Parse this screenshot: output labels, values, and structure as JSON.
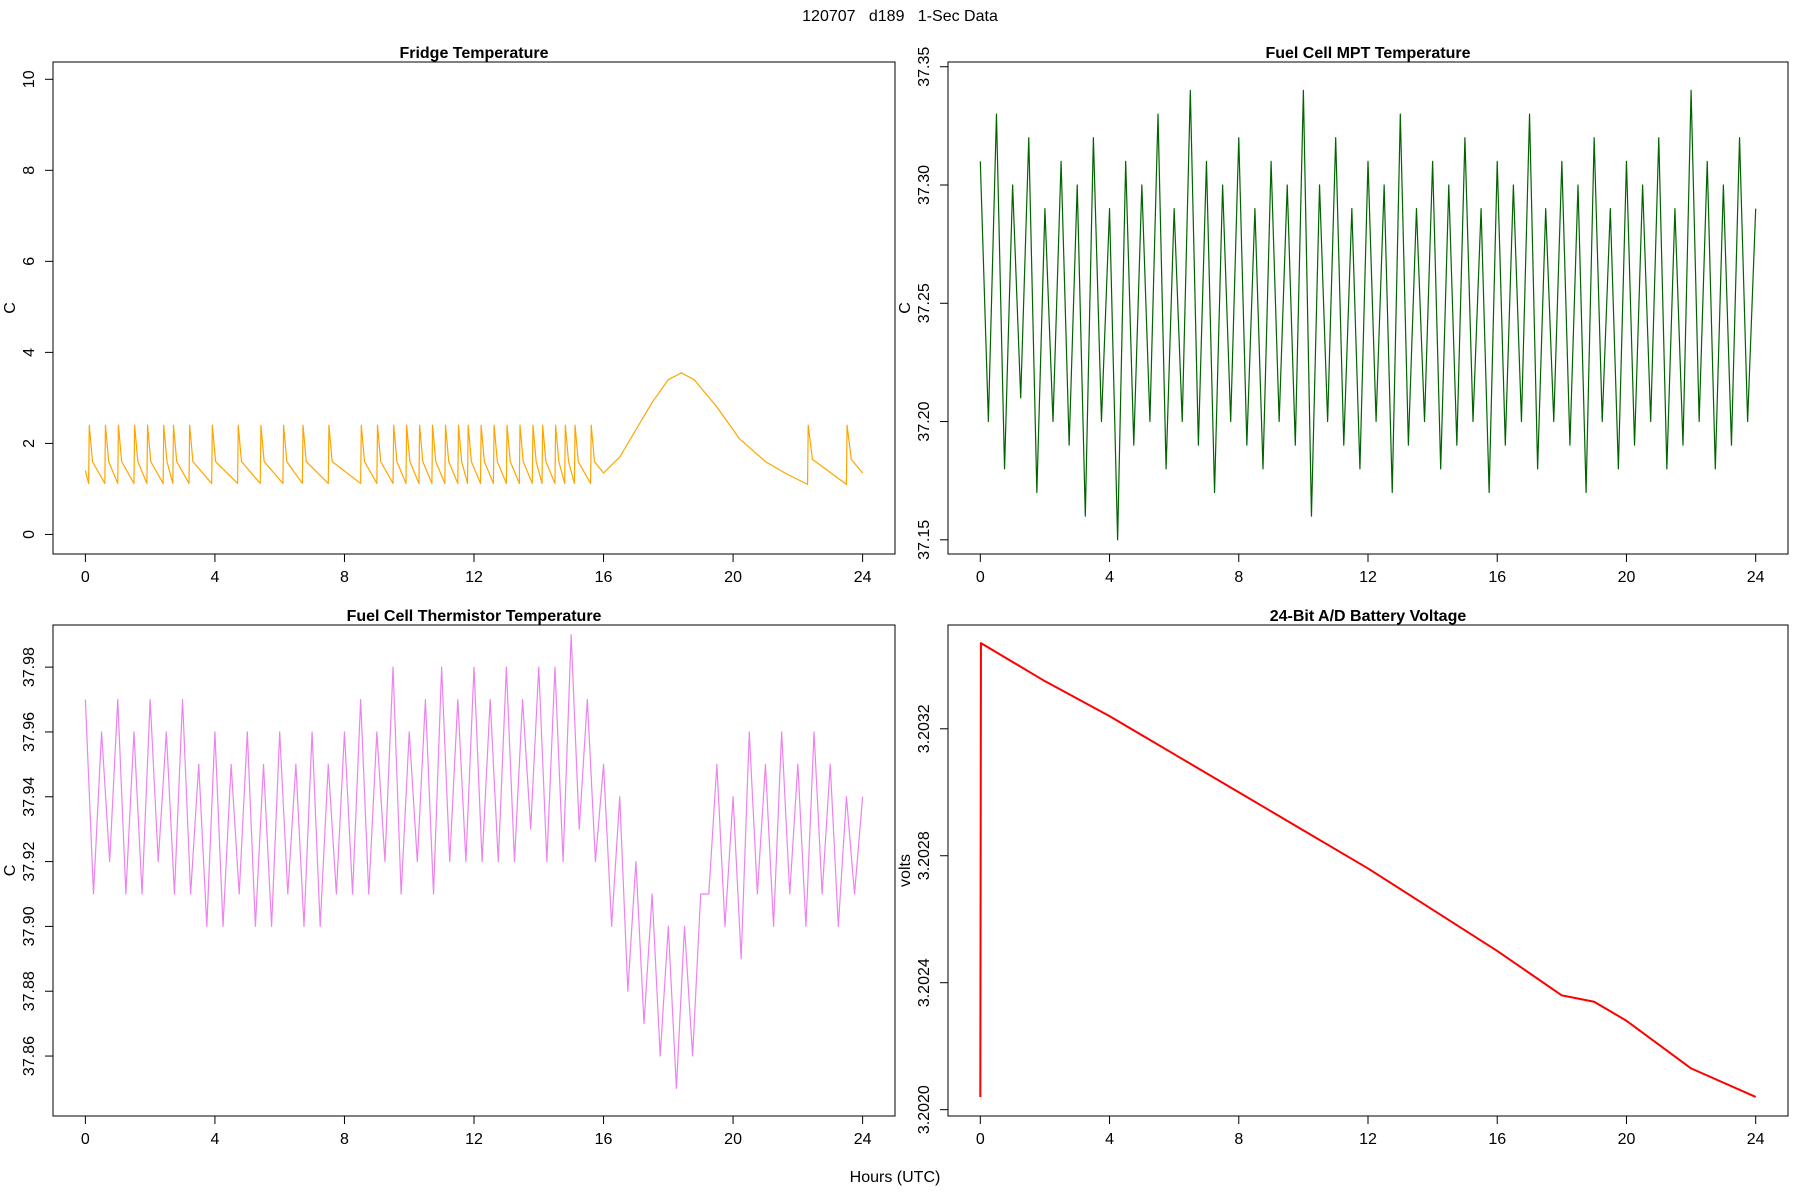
{
  "title": "120707   d189   1-Sec Data",
  "xlabel": "Hours (UTC)",
  "chart_data": [
    {
      "type": "line",
      "title": "Fridge Temperature",
      "ylabel": "C",
      "color": "#ffa500",
      "xlim": [
        -1,
        25
      ],
      "xticks": [
        0,
        4,
        8,
        12,
        16,
        20,
        24
      ],
      "ylim": [
        -0.43,
        10.38
      ],
      "yticks": [
        0,
        2,
        4,
        6,
        8,
        10
      ],
      "x": [
        0,
        0.1,
        0.12,
        0.22,
        0.6,
        0.62,
        0.72,
        1.0,
        1.02,
        1.12,
        1.5,
        1.52,
        1.62,
        1.9,
        1.92,
        2.02,
        2.4,
        2.42,
        2.52,
        2.7,
        2.72,
        2.82,
        3.2,
        3.22,
        3.32,
        3.9,
        3.92,
        4.02,
        4.7,
        4.72,
        4.82,
        5.4,
        5.42,
        5.52,
        6.1,
        6.12,
        6.22,
        6.7,
        6.72,
        6.82,
        7.5,
        7.52,
        7.62,
        8.5,
        8.52,
        8.62,
        9.0,
        9.02,
        9.12,
        9.5,
        9.52,
        9.62,
        9.9,
        9.92,
        10.02,
        10.3,
        10.32,
        10.42,
        10.7,
        10.72,
        10.82,
        11.1,
        11.12,
        11.22,
        11.5,
        11.52,
        11.62,
        11.8,
        11.82,
        11.92,
        12.2,
        12.22,
        12.32,
        12.6,
        12.62,
        12.72,
        13.0,
        13.02,
        13.12,
        13.4,
        13.42,
        13.52,
        13.8,
        13.82,
        13.92,
        14.1,
        14.12,
        14.22,
        14.5,
        14.52,
        14.62,
        14.8,
        14.82,
        14.92,
        15.1,
        15.12,
        15.22,
        15.6,
        15.62,
        15.72,
        16.0,
        16.5,
        17.0,
        17.5,
        18.0,
        18.4,
        18.8,
        19.5,
        20.2,
        21.0,
        21.6,
        22.3,
        22.32,
        22.45,
        23.5,
        23.52,
        23.65,
        24
      ],
      "values": [
        1.4,
        1.12,
        2.4,
        1.6,
        1.12,
        2.4,
        1.6,
        1.12,
        2.4,
        1.6,
        1.12,
        2.4,
        1.6,
        1.12,
        2.4,
        1.6,
        1.12,
        2.4,
        1.6,
        1.12,
        2.4,
        1.6,
        1.12,
        2.4,
        1.6,
        1.12,
        2.4,
        1.6,
        1.12,
        2.4,
        1.6,
        1.12,
        2.4,
        1.6,
        1.12,
        2.4,
        1.6,
        1.12,
        2.4,
        1.6,
        1.12,
        2.4,
        1.6,
        1.12,
        2.4,
        1.6,
        1.12,
        2.4,
        1.6,
        1.12,
        2.4,
        1.6,
        1.12,
        2.4,
        1.6,
        1.12,
        2.4,
        1.6,
        1.12,
        2.4,
        1.6,
        1.12,
        2.4,
        1.6,
        1.12,
        2.4,
        1.6,
        1.12,
        2.4,
        1.6,
        1.12,
        2.4,
        1.6,
        1.12,
        2.4,
        1.6,
        1.12,
        2.4,
        1.6,
        1.12,
        2.4,
        1.6,
        1.12,
        2.4,
        1.6,
        1.12,
        2.4,
        1.6,
        1.12,
        2.4,
        1.6,
        1.12,
        2.4,
        1.6,
        1.12,
        2.4,
        1.6,
        1.12,
        2.4,
        1.6,
        1.35,
        1.7,
        2.3,
        2.9,
        3.4,
        3.55,
        3.4,
        2.8,
        2.1,
        1.6,
        1.35,
        1.1,
        2.4,
        1.65,
        1.1,
        2.4,
        1.65,
        1.35
      ]
    },
    {
      "type": "line",
      "title": "Fuel Cell MPT Temperature",
      "ylabel": "C",
      "color": "#006400",
      "xlim": [
        -1,
        25
      ],
      "xticks": [
        0,
        4,
        8,
        12,
        16,
        20,
        24
      ],
      "ylim": [
        37.144,
        37.352
      ],
      "yticks": [
        37.15,
        {
          "value": 37.2,
          "label": "37.20"
        },
        37.25,
        {
          "value": 37.3,
          "label": "37.30"
        },
        37.35
      ],
      "x": [
        0,
        0.25,
        0.5,
        0.75,
        1,
        1.25,
        1.5,
        1.75,
        2,
        2.25,
        2.5,
        2.75,
        3,
        3.25,
        3.5,
        3.75,
        4,
        4.25,
        4.5,
        4.75,
        5,
        5.25,
        5.5,
        5.75,
        6,
        6.25,
        6.5,
        6.75,
        7,
        7.25,
        7.5,
        7.75,
        8,
        8.25,
        8.5,
        8.75,
        9,
        9.25,
        9.5,
        9.75,
        10,
        10.25,
        10.5,
        10.75,
        11,
        11.25,
        11.5,
        11.75,
        12,
        12.25,
        12.5,
        12.75,
        13,
        13.25,
        13.5,
        13.75,
        14,
        14.25,
        14.5,
        14.75,
        15,
        15.25,
        15.5,
        15.75,
        16,
        16.25,
        16.5,
        16.75,
        17,
        17.25,
        17.5,
        17.75,
        18,
        18.25,
        18.5,
        18.75,
        19,
        19.25,
        19.5,
        19.75,
        20,
        20.25,
        20.5,
        20.75,
        21,
        21.25,
        21.5,
        21.75,
        22,
        22.25,
        22.5,
        22.75,
        23,
        23.25,
        23.5,
        23.75,
        24
      ],
      "values": [
        37.31,
        37.2,
        37.33,
        37.18,
        37.3,
        37.21,
        37.32,
        37.17,
        37.29,
        37.2,
        37.31,
        37.19,
        37.3,
        37.16,
        37.32,
        37.2,
        37.29,
        37.15,
        37.31,
        37.19,
        37.3,
        37.2,
        37.33,
        37.18,
        37.29,
        37.2,
        37.34,
        37.19,
        37.31,
        37.17,
        37.3,
        37.2,
        37.32,
        37.19,
        37.29,
        37.18,
        37.31,
        37.2,
        37.3,
        37.19,
        37.34,
        37.16,
        37.3,
        37.2,
        37.32,
        37.19,
        37.29,
        37.18,
        37.31,
        37.2,
        37.3,
        37.17,
        37.33,
        37.19,
        37.29,
        37.2,
        37.31,
        37.18,
        37.3,
        37.19,
        37.32,
        37.2,
        37.29,
        37.17,
        37.31,
        37.19,
        37.3,
        37.2,
        37.33,
        37.18,
        37.29,
        37.2,
        37.31,
        37.19,
        37.3,
        37.17,
        37.32,
        37.2,
        37.29,
        37.18,
        37.31,
        37.19,
        37.3,
        37.2,
        37.32,
        37.18,
        37.29,
        37.19,
        37.34,
        37.2,
        37.31,
        37.18,
        37.3,
        37.19,
        37.32,
        37.2,
        37.29
      ]
    },
    {
      "type": "line",
      "title": "Fuel Cell Thermistor Temperature",
      "ylabel": "C",
      "color": "#ee82ee",
      "xlim": [
        -1,
        25
      ],
      "xticks": [
        0,
        4,
        8,
        12,
        16,
        20,
        24
      ],
      "ylim": [
        37.8415,
        37.993
      ],
      "yticks": [
        37.86,
        37.88,
        {
          "value": 37.9,
          "label": "37.90"
        },
        37.92,
        37.94,
        37.96,
        37.98
      ],
      "x": [
        0,
        0.25,
        0.5,
        0.75,
        1,
        1.25,
        1.5,
        1.75,
        2,
        2.25,
        2.5,
        2.75,
        3,
        3.25,
        3.5,
        3.75,
        4,
        4.25,
        4.5,
        4.75,
        5,
        5.25,
        5.5,
        5.75,
        6,
        6.25,
        6.5,
        6.75,
        7,
        7.25,
        7.5,
        7.75,
        8,
        8.25,
        8.5,
        8.75,
        9,
        9.25,
        9.5,
        9.75,
        10,
        10.25,
        10.5,
        10.75,
        11,
        11.25,
        11.5,
        11.75,
        12,
        12.25,
        12.5,
        12.75,
        13,
        13.25,
        13.5,
        13.75,
        14,
        14.25,
        14.5,
        14.75,
        15,
        15.25,
        15.5,
        15.75,
        16,
        16.25,
        16.5,
        16.75,
        17,
        17.25,
        17.5,
        17.75,
        18,
        18.25,
        18.5,
        18.75,
        19,
        19.25,
        19.5,
        19.75,
        20,
        20.25,
        20.5,
        20.75,
        21,
        21.25,
        21.5,
        21.75,
        22,
        22.25,
        22.5,
        22.75,
        23,
        23.25,
        23.5,
        23.75,
        24
      ],
      "values": [
        37.97,
        37.91,
        37.96,
        37.92,
        37.97,
        37.91,
        37.96,
        37.91,
        37.97,
        37.92,
        37.96,
        37.91,
        37.97,
        37.91,
        37.95,
        37.9,
        37.96,
        37.9,
        37.95,
        37.91,
        37.96,
        37.9,
        37.95,
        37.9,
        37.96,
        37.91,
        37.95,
        37.9,
        37.96,
        37.9,
        37.95,
        37.91,
        37.96,
        37.91,
        37.97,
        37.91,
        37.96,
        37.92,
        37.98,
        37.91,
        37.96,
        37.92,
        37.97,
        37.91,
        37.98,
        37.92,
        37.97,
        37.92,
        37.98,
        37.92,
        37.97,
        37.92,
        37.98,
        37.92,
        37.97,
        37.93,
        37.98,
        37.92,
        37.98,
        37.92,
        37.99,
        37.93,
        37.97,
        37.92,
        37.95,
        37.9,
        37.94,
        37.88,
        37.92,
        37.87,
        37.91,
        37.86,
        37.9,
        37.85,
        37.9,
        37.86,
        37.91,
        37.91,
        37.95,
        37.9,
        37.94,
        37.89,
        37.96,
        37.91,
        37.95,
        37.9,
        37.96,
        37.91,
        37.95,
        37.9,
        37.96,
        37.91,
        37.95,
        37.9,
        37.94,
        37.91,
        37.94
      ]
    },
    {
      "type": "line",
      "title": "24-Bit A/D Battery Voltage",
      "ylabel": "volts",
      "color": "#ff0000",
      "xlim": [
        -1,
        25
      ],
      "xticks": [
        0,
        4,
        8,
        12,
        16,
        20,
        24
      ],
      "ylim": [
        3.20198,
        3.203527
      ],
      "yticks": [
        {
          "value": 3.202,
          "label": "3.2020"
        },
        3.2024,
        3.2028,
        3.2032
      ],
      "x": [
        0,
        0.02,
        2,
        4,
        6,
        8,
        10,
        12,
        14,
        16,
        18,
        19,
        20,
        22,
        24
      ],
      "values": [
        3.20204,
        3.20347,
        3.20335,
        3.20324,
        3.20312,
        3.203,
        3.20288,
        3.20276,
        3.20263,
        3.2025,
        3.20236,
        3.20234,
        3.20228,
        3.20213,
        3.20204
      ]
    }
  ]
}
